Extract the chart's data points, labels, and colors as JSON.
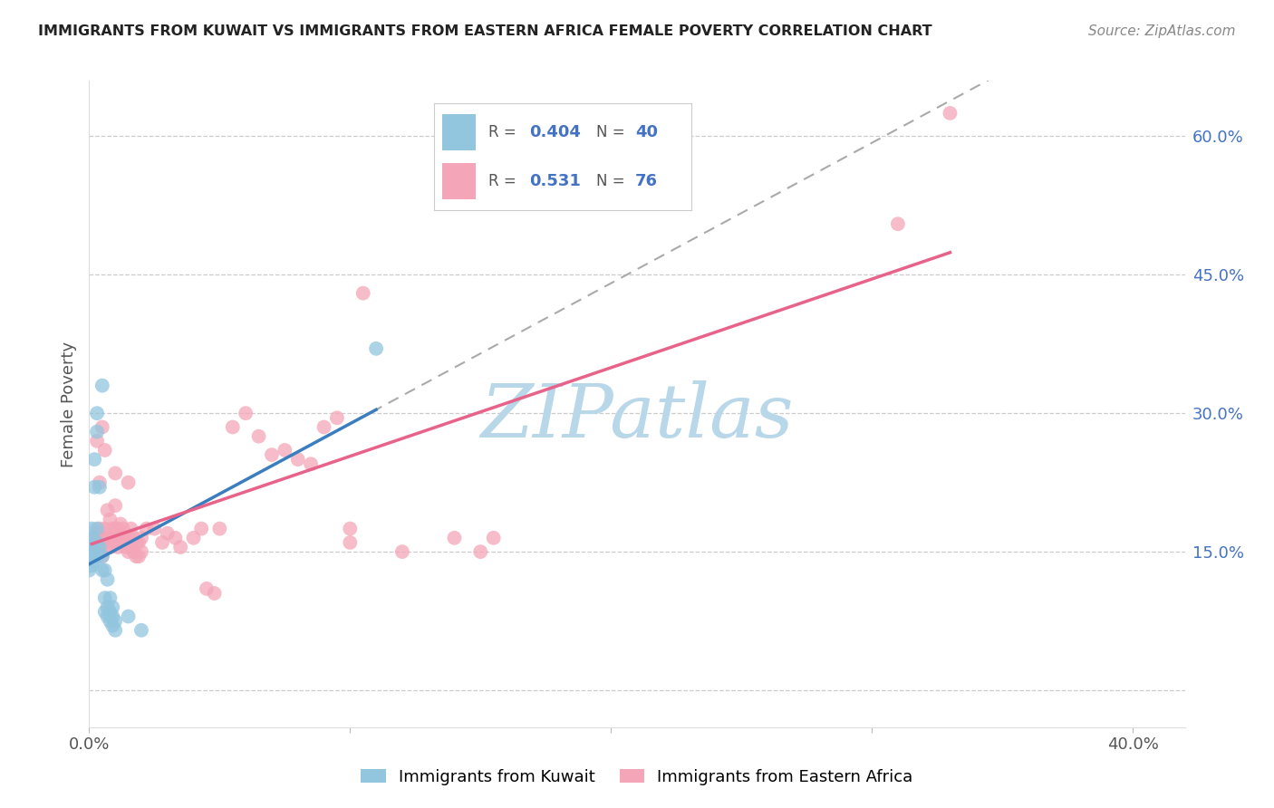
{
  "title": "IMMIGRANTS FROM KUWAIT VS IMMIGRANTS FROM EASTERN AFRICA FEMALE POVERTY CORRELATION CHART",
  "source": "Source: ZipAtlas.com",
  "ylabel": "Female Poverty",
  "y_ticks": [
    0.0,
    0.15,
    0.3,
    0.45,
    0.6
  ],
  "y_tick_labels": [
    "",
    "15.0%",
    "30.0%",
    "45.0%",
    "60.0%"
  ],
  "x_ticks": [
    0.0,
    0.1,
    0.2,
    0.3,
    0.4
  ],
  "x_tick_labels": [
    "0.0%",
    "",
    "",
    "",
    "40.0%"
  ],
  "xlim": [
    0.0,
    0.42
  ],
  "ylim": [
    -0.04,
    0.66
  ],
  "blue_R": 0.404,
  "blue_N": 40,
  "pink_R": 0.531,
  "pink_N": 76,
  "blue_color": "#92c5de",
  "pink_color": "#f4a6b8",
  "blue_line_color": "#3a7ebf",
  "pink_line_color": "#e8638a",
  "blue_scatter": [
    [
      0.0,
      0.13
    ],
    [
      0.0,
      0.145
    ],
    [
      0.0,
      0.155
    ],
    [
      0.0,
      0.16
    ],
    [
      0.001,
      0.135
    ],
    [
      0.001,
      0.145
    ],
    [
      0.001,
      0.155
    ],
    [
      0.001,
      0.165
    ],
    [
      0.001,
      0.175
    ],
    [
      0.002,
      0.14
    ],
    [
      0.002,
      0.155
    ],
    [
      0.002,
      0.22
    ],
    [
      0.002,
      0.25
    ],
    [
      0.003,
      0.145
    ],
    [
      0.003,
      0.16
    ],
    [
      0.003,
      0.175
    ],
    [
      0.003,
      0.28
    ],
    [
      0.003,
      0.3
    ],
    [
      0.004,
      0.155
    ],
    [
      0.004,
      0.22
    ],
    [
      0.005,
      0.13
    ],
    [
      0.005,
      0.145
    ],
    [
      0.005,
      0.33
    ],
    [
      0.006,
      0.085
    ],
    [
      0.006,
      0.1
    ],
    [
      0.006,
      0.13
    ],
    [
      0.007,
      0.08
    ],
    [
      0.007,
      0.09
    ],
    [
      0.007,
      0.12
    ],
    [
      0.008,
      0.075
    ],
    [
      0.008,
      0.085
    ],
    [
      0.008,
      0.1
    ],
    [
      0.009,
      0.07
    ],
    [
      0.009,
      0.08
    ],
    [
      0.009,
      0.09
    ],
    [
      0.01,
      0.065
    ],
    [
      0.01,
      0.075
    ],
    [
      0.015,
      0.08
    ],
    [
      0.02,
      0.065
    ],
    [
      0.11,
      0.37
    ]
  ],
  "pink_scatter": [
    [
      0.001,
      0.145
    ],
    [
      0.002,
      0.15
    ],
    [
      0.002,
      0.165
    ],
    [
      0.003,
      0.155
    ],
    [
      0.003,
      0.17
    ],
    [
      0.003,
      0.27
    ],
    [
      0.004,
      0.155
    ],
    [
      0.004,
      0.175
    ],
    [
      0.004,
      0.225
    ],
    [
      0.005,
      0.145
    ],
    [
      0.005,
      0.165
    ],
    [
      0.005,
      0.285
    ],
    [
      0.006,
      0.155
    ],
    [
      0.006,
      0.175
    ],
    [
      0.006,
      0.26
    ],
    [
      0.007,
      0.165
    ],
    [
      0.007,
      0.195
    ],
    [
      0.008,
      0.155
    ],
    [
      0.008,
      0.165
    ],
    [
      0.008,
      0.185
    ],
    [
      0.009,
      0.16
    ],
    [
      0.009,
      0.175
    ],
    [
      0.01,
      0.16
    ],
    [
      0.01,
      0.175
    ],
    [
      0.01,
      0.2
    ],
    [
      0.01,
      0.235
    ],
    [
      0.011,
      0.155
    ],
    [
      0.011,
      0.175
    ],
    [
      0.012,
      0.16
    ],
    [
      0.012,
      0.18
    ],
    [
      0.013,
      0.165
    ],
    [
      0.013,
      0.175
    ],
    [
      0.014,
      0.155
    ],
    [
      0.014,
      0.165
    ],
    [
      0.015,
      0.15
    ],
    [
      0.015,
      0.165
    ],
    [
      0.015,
      0.225
    ],
    [
      0.016,
      0.155
    ],
    [
      0.016,
      0.175
    ],
    [
      0.017,
      0.15
    ],
    [
      0.017,
      0.165
    ],
    [
      0.018,
      0.145
    ],
    [
      0.018,
      0.16
    ],
    [
      0.019,
      0.145
    ],
    [
      0.019,
      0.16
    ],
    [
      0.02,
      0.15
    ],
    [
      0.02,
      0.165
    ],
    [
      0.022,
      0.175
    ],
    [
      0.025,
      0.175
    ],
    [
      0.028,
      0.16
    ],
    [
      0.03,
      0.17
    ],
    [
      0.033,
      0.165
    ],
    [
      0.035,
      0.155
    ],
    [
      0.04,
      0.165
    ],
    [
      0.043,
      0.175
    ],
    [
      0.045,
      0.11
    ],
    [
      0.048,
      0.105
    ],
    [
      0.05,
      0.175
    ],
    [
      0.055,
      0.285
    ],
    [
      0.06,
      0.3
    ],
    [
      0.065,
      0.275
    ],
    [
      0.07,
      0.255
    ],
    [
      0.075,
      0.26
    ],
    [
      0.08,
      0.25
    ],
    [
      0.085,
      0.245
    ],
    [
      0.09,
      0.285
    ],
    [
      0.095,
      0.295
    ],
    [
      0.1,
      0.175
    ],
    [
      0.1,
      0.16
    ],
    [
      0.105,
      0.43
    ],
    [
      0.12,
      0.15
    ],
    [
      0.14,
      0.165
    ],
    [
      0.15,
      0.15
    ],
    [
      0.155,
      0.165
    ],
    [
      0.31,
      0.505
    ],
    [
      0.33,
      0.625
    ]
  ],
  "watermark_text": "ZIPatlas",
  "watermark_color": "#b8d8ea",
  "legend_labels": [
    "Immigrants from Kuwait",
    "Immigrants from Eastern Africa"
  ],
  "background_color": "#ffffff",
  "grid_color": "#cccccc",
  "grid_style": "--",
  "title_color": "#222222",
  "source_color": "#888888",
  "ylabel_color": "#555555",
  "tick_label_color_x": "#555555",
  "tick_label_color_y": "#4472c4"
}
